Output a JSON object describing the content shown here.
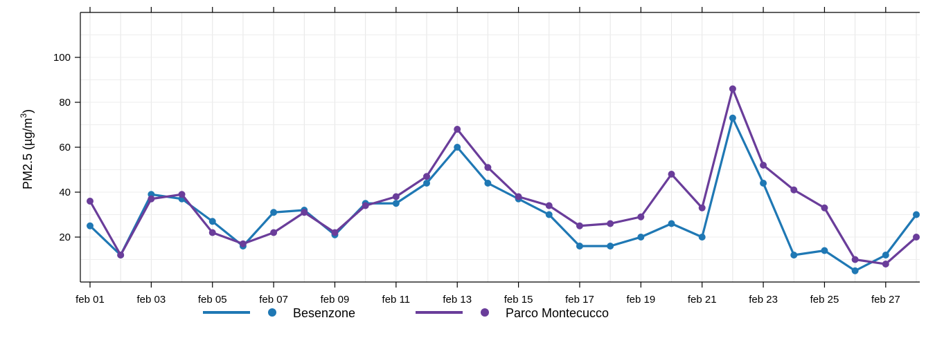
{
  "chart_data": {
    "type": "line",
    "title": "",
    "xlabel": "",
    "ylabel": {
      "main": "PM2.5 (µg/m",
      "sup": "3",
      "close": ")"
    },
    "x": [
      "feb 01",
      "feb 02",
      "feb 03",
      "feb 04",
      "feb 05",
      "feb 06",
      "feb 07",
      "feb 08",
      "feb 09",
      "feb 10",
      "feb 11",
      "feb 12",
      "feb 13",
      "feb 14",
      "feb 15",
      "feb 16",
      "feb 17",
      "feb 18",
      "feb 19",
      "feb 20",
      "feb 21",
      "feb 22",
      "feb 23",
      "feb 24",
      "feb 25",
      "feb 26",
      "feb 27",
      "feb 28"
    ],
    "x_tick_labels": [
      "feb 01",
      "feb 03",
      "feb 05",
      "feb 07",
      "feb 09",
      "feb 11",
      "feb 13",
      "feb 15",
      "feb 17",
      "feb 19",
      "feb 21",
      "feb 23",
      "feb 25",
      "feb 27"
    ],
    "y_tick_labels": [
      "20",
      "40",
      "60",
      "80",
      "100"
    ],
    "ylim": [
      0,
      120
    ],
    "grid": true,
    "legend_position": "bottom",
    "series": [
      {
        "name": "Besenzone",
        "color": "#1f78b4",
        "values": [
          25,
          12,
          39,
          37,
          27,
          16,
          31,
          32,
          21,
          35,
          35,
          44,
          60,
          44,
          37,
          30,
          16,
          16,
          20,
          26,
          20,
          73,
          44,
          12,
          14,
          5,
          12,
          30
        ]
      },
      {
        "name": "Parco Montecucco",
        "color": "#6a3d9a",
        "values": [
          36,
          12,
          37,
          39,
          22,
          17,
          22,
          31,
          22,
          34,
          38,
          47,
          68,
          51,
          38,
          34,
          25,
          26,
          29,
          48,
          33,
          86,
          52,
          41,
          33,
          10,
          8,
          20
        ]
      }
    ]
  }
}
